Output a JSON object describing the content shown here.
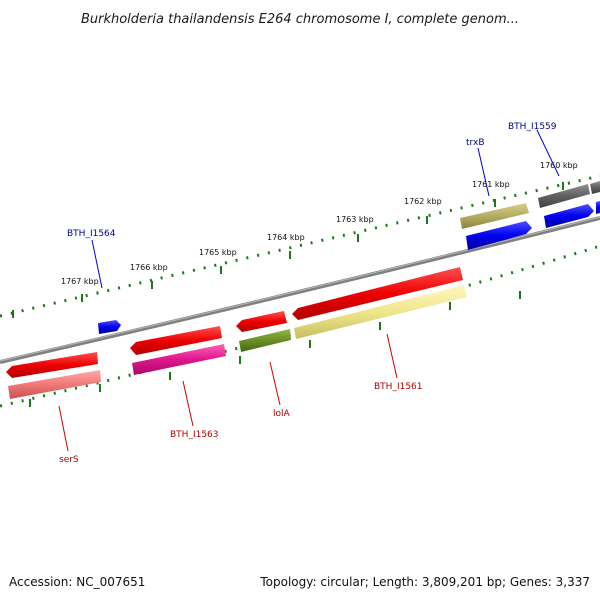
{
  "title": "Burkholderia thailandensis E264 chromosome I, complete genom...",
  "footer": {
    "accession": "Accession: NC_007651",
    "topology": "Topology: circular; Length: 3,809,201 bp; Genes: 3,337"
  },
  "ticks": [
    {
      "label": "1767 kbp"
    },
    {
      "label": "1766 kbp"
    },
    {
      "label": "1765 kbp"
    },
    {
      "label": "1764 kbp"
    },
    {
      "label": "1763 kbp"
    },
    {
      "label": "1762 kbp"
    },
    {
      "label": "1761 kbp"
    },
    {
      "label": "1760 kbp"
    }
  ],
  "gene_labels": [
    {
      "text": "BTH_I1559",
      "color": "#00008b"
    },
    {
      "text": "trxB",
      "color": "#00008b"
    },
    {
      "text": "BTH_I1564",
      "color": "#00008b"
    },
    {
      "text": "serS",
      "color": "#b00000"
    },
    {
      "text": "BTH_I1563",
      "color": "#b00000"
    },
    {
      "text": "lolA",
      "color": "#b00000"
    },
    {
      "text": "BTH_I1561",
      "color": "#b00000"
    }
  ],
  "colors": {
    "backbone": "#808080",
    "ticks": "#1a7a1a",
    "red": "#ee0000",
    "pink": "#f07878",
    "magenta": "#e0168c",
    "olive_green": "#6b8e23",
    "khaki": "#f0e68c",
    "dark_khaki": "#b5ad60",
    "blue": "#0000ee",
    "gray": "#606060"
  }
}
